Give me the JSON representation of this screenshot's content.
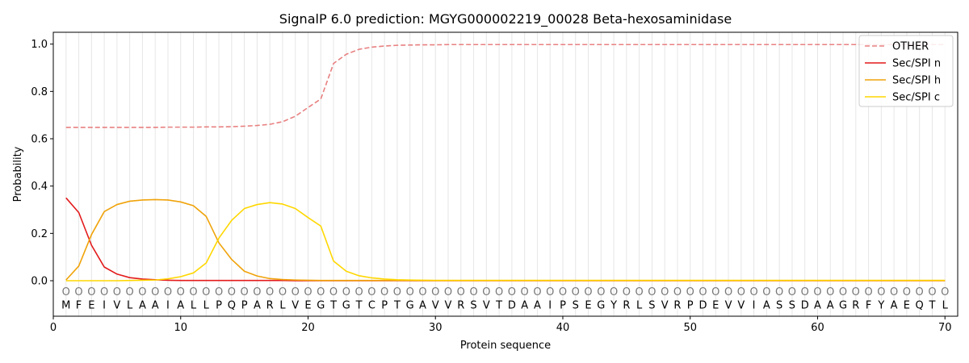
{
  "chart_data": {
    "type": "line",
    "title": "SignalP 6.0 prediction: MGYG000002219_00028 Beta-hexosaminidase",
    "xlabel": "Protein sequence",
    "ylabel": "Probability",
    "xlim": [
      0,
      71
    ],
    "ylim": [
      -0.15,
      1.05
    ],
    "xticks": [
      0,
      10,
      20,
      30,
      40,
      50,
      60,
      70
    ],
    "yticks": [
      0.0,
      0.2,
      0.4,
      0.6,
      0.8,
      1.0
    ],
    "ytick_labels": [
      "0.0",
      "0.2",
      "0.4",
      "0.6",
      "0.8",
      "1.0"
    ],
    "sequence": [
      "M",
      "F",
      "E",
      "I",
      "V",
      "L",
      "A",
      "A",
      "I",
      "A",
      "L",
      "L",
      "P",
      "Q",
      "P",
      "A",
      "R",
      "L",
      "V",
      "E",
      "G",
      "T",
      "G",
      "T",
      "C",
      "P",
      "T",
      "G",
      "A",
      "V",
      "V",
      "R",
      "S",
      "V",
      "T",
      "D",
      "A",
      "A",
      "I",
      "P",
      "S",
      "E",
      "G",
      "Y",
      "R",
      "L",
      "S",
      "V",
      "R",
      "P",
      "D",
      "E",
      "V",
      "V",
      "I",
      "A",
      "S",
      "S",
      "D",
      "A",
      "A",
      "G",
      "R",
      "F",
      "Y",
      "A",
      "E",
      "Q",
      "T",
      "L"
    ],
    "position_marker": "O",
    "legend_position": "upper right",
    "series": [
      {
        "name": "OTHER",
        "color": "#e88080",
        "dash": "dashed",
        "values": [
          0.648,
          0.648,
          0.648,
          0.648,
          0.648,
          0.648,
          0.648,
          0.648,
          0.649,
          0.649,
          0.649,
          0.65,
          0.65,
          0.651,
          0.653,
          0.656,
          0.661,
          0.672,
          0.695,
          0.732,
          0.768,
          0.918,
          0.957,
          0.978,
          0.987,
          0.992,
          0.995,
          0.996,
          0.997,
          0.997,
          0.998,
          0.998,
          0.998,
          0.998,
          0.998,
          0.998,
          0.998,
          0.998,
          0.998,
          0.998,
          0.998,
          0.998,
          0.998,
          0.998,
          0.998,
          0.998,
          0.998,
          0.998,
          0.998,
          0.998,
          0.998,
          0.998,
          0.998,
          0.998,
          0.998,
          0.998,
          0.998,
          0.998,
          0.998,
          0.998,
          0.998,
          0.998,
          0.998,
          0.998,
          0.998,
          0.998,
          0.998,
          0.998,
          0.998,
          0.998
        ]
      },
      {
        "name": "Sec/SPI n",
        "color": "#e31a1c",
        "dash": "solid",
        "values": [
          0.35,
          0.288,
          0.15,
          0.058,
          0.028,
          0.013,
          0.007,
          0.004,
          0.002,
          0.001,
          0.001,
          0.001,
          0.001,
          0.001,
          0.001,
          0.001,
          0.001,
          0.001,
          0,
          0,
          0,
          0,
          0,
          0,
          0,
          0,
          0,
          0,
          0,
          0,
          0,
          0,
          0,
          0,
          0,
          0,
          0,
          0,
          0,
          0,
          0,
          0,
          0,
          0,
          0,
          0,
          0,
          0,
          0,
          0,
          0,
          0,
          0,
          0,
          0,
          0,
          0,
          0,
          0,
          0,
          0,
          0,
          0,
          0,
          0,
          0,
          0,
          0,
          0,
          0
        ]
      },
      {
        "name": "Sec/SPI h",
        "color": "#f0a30a",
        "dash": "solid",
        "values": [
          0.003,
          0.062,
          0.195,
          0.292,
          0.322,
          0.336,
          0.341,
          0.343,
          0.341,
          0.333,
          0.317,
          0.272,
          0.16,
          0.09,
          0.04,
          0.02,
          0.009,
          0.005,
          0.003,
          0.002,
          0.001,
          0.001,
          0.001,
          0.001,
          0.001,
          0.001,
          0.001,
          0.001,
          0.001,
          0.001,
          0.001,
          0.001,
          0.001,
          0.001,
          0.001,
          0.001,
          0.001,
          0.001,
          0.001,
          0.001,
          0.001,
          0.001,
          0.001,
          0.001,
          0.001,
          0.001,
          0.001,
          0.001,
          0.001,
          0.001,
          0.001,
          0.001,
          0.001,
          0.001,
          0.001,
          0.001,
          0.001,
          0.001,
          0.001,
          0.001,
          0.001,
          0.001,
          0.001,
          0.001,
          0.001,
          0.001,
          0.001,
          0.001,
          0.001,
          0.001
        ]
      },
      {
        "name": "Sec/SPI c",
        "color": "#ffd700",
        "dash": "solid",
        "values": [
          0.0,
          0.0,
          0.0,
          0.0,
          0.0,
          0.001,
          0.002,
          0.003,
          0.008,
          0.017,
          0.033,
          0.075,
          0.18,
          0.255,
          0.305,
          0.322,
          0.33,
          0.324,
          0.305,
          0.267,
          0.231,
          0.083,
          0.04,
          0.021,
          0.012,
          0.007,
          0.004,
          0.003,
          0.002,
          0.001,
          0.001,
          0.001,
          0.001,
          0.001,
          0.001,
          0.001,
          0.001,
          0.001,
          0.001,
          0.001,
          0.001,
          0.001,
          0.001,
          0.001,
          0.001,
          0.001,
          0.001,
          0.001,
          0.001,
          0.001,
          0.001,
          0.001,
          0.001,
          0.001,
          0.001,
          0.001,
          0.001,
          0.001,
          0.001,
          0.001,
          0.001,
          0.001,
          0.001,
          0.001,
          0.001,
          0.001,
          0.001,
          0.001,
          0.001,
          0.001
        ]
      }
    ]
  }
}
